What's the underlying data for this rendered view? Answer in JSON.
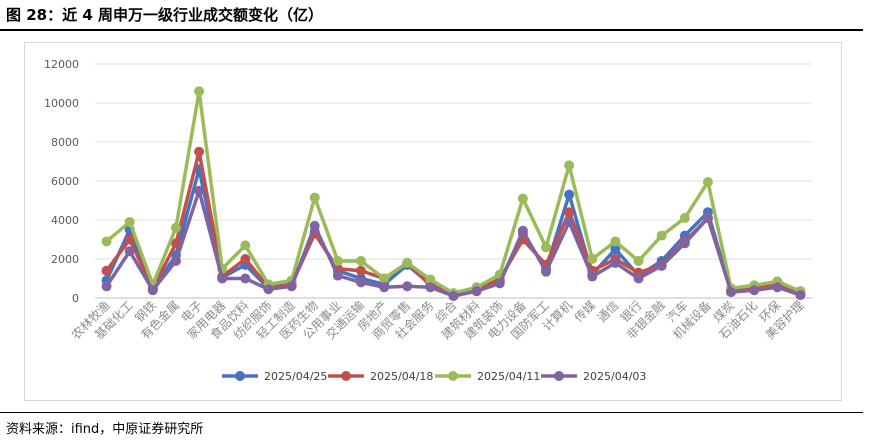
{
  "header": {
    "title": "图 28：近 4 周申万一级行业成交额变化（亿）"
  },
  "footer": {
    "source": "资料来源：ifind，中原证券研究所"
  },
  "chart_data": {
    "type": "line",
    "title": "",
    "xlabel": "",
    "ylabel": "",
    "ylim": [
      0,
      12000
    ],
    "yticks": [
      "0",
      "2000",
      "4000",
      "6000",
      "8000",
      "10000",
      "12000"
    ],
    "grid": true,
    "legend_position": "bottom",
    "categories": [
      "农林牧渔",
      "基础化工",
      "钢铁",
      "有色金属",
      "电子",
      "家用电器",
      "食品饮料",
      "纺织服饰",
      "轻工制造",
      "医药生物",
      "公用事业",
      "交通运输",
      "房地产",
      "商贸零售",
      "社会服务",
      "综合",
      "建筑材料",
      "建筑装饰",
      "电力设备",
      "国防军工",
      "计算机",
      "传媒",
      "通信",
      "银行",
      "非银金融",
      "汽车",
      "机械设备",
      "煤炭",
      "石油石化",
      "环保",
      "美容护理"
    ],
    "series": [
      {
        "name": "2025/04/25",
        "color": "#4472c4",
        "values": [
          900,
          3500,
          450,
          2200,
          6600,
          1050,
          1700,
          500,
          650,
          3400,
          1400,
          1000,
          700,
          1700,
          700,
          150,
          400,
          850,
          3300,
          1500,
          5300,
          1200,
          2500,
          1150,
          1900,
          3200,
          4400,
          300,
          450,
          600,
          200
        ]
      },
      {
        "name": "2025/04/18",
        "color": "#c0504d",
        "values": [
          1400,
          3000,
          500,
          2800,
          7500,
          1100,
          2000,
          550,
          700,
          3300,
          1500,
          1400,
          1000,
          1800,
          650,
          150,
          450,
          950,
          3000,
          1700,
          4400,
          1400,
          2000,
          1300,
          1700,
          2900,
          4100,
          400,
          550,
          650,
          250
        ]
      },
      {
        "name": "2025/04/11",
        "color": "#9bbb59",
        "values": [
          2900,
          3900,
          700,
          3600,
          10600,
          1500,
          2700,
          700,
          900,
          5150,
          1900,
          1900,
          1000,
          1800,
          950,
          250,
          550,
          1200,
          5100,
          2600,
          6800,
          2000,
          2900,
          1900,
          3200,
          4100,
          5950,
          500,
          650,
          850,
          350
        ]
      },
      {
        "name": "2025/04/03",
        "color": "#8064a2",
        "values": [
          600,
          2400,
          400,
          1900,
          5500,
          1000,
          1000,
          450,
          600,
          3700,
          1150,
          800,
          550,
          600,
          550,
          100,
          350,
          750,
          3450,
          1350,
          3900,
          1100,
          1800,
          1000,
          1650,
          2800,
          4100,
          300,
          400,
          550,
          150
        ]
      }
    ]
  }
}
